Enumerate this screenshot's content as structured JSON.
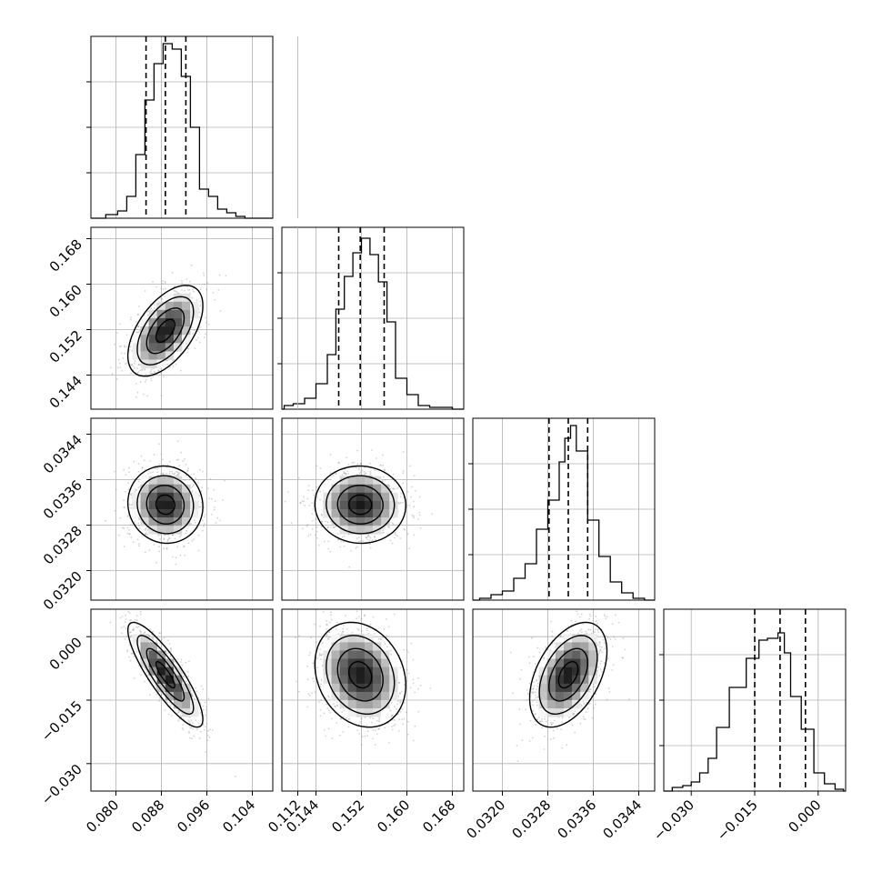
{
  "chart_data": {
    "type": "corner",
    "title": "",
    "colors": {
      "frame": "#000000",
      "grid": "#b0b0b0",
      "points": "#808080"
    },
    "parameters": [
      {
        "ticks": [
          0.08,
          0.088,
          0.096,
          0.104,
          0.112
        ],
        "tick_labels": [
          "0.080",
          "0.088",
          "0.096",
          "0.104",
          "0.112"
        ],
        "range": [
          0.0756,
          0.1076
        ],
        "quantiles": [
          0.0853,
          0.0887,
          0.0923
        ],
        "mean": 0.0887,
        "sd": 0.0033
      },
      {
        "ticks": [
          0.144,
          0.152,
          0.16,
          0.168
        ],
        "tick_labels": [
          "0.144",
          "0.152",
          "0.160",
          "0.168"
        ],
        "range": [
          0.138,
          0.17
        ],
        "quantiles": [
          0.148,
          0.1518,
          0.156
        ],
        "mean": 0.1518,
        "sd": 0.004
      },
      {
        "ticks": [
          0.032,
          0.0328,
          0.0336,
          0.0344
        ],
        "tick_labels": [
          "0.0320",
          "0.0328",
          "0.0336",
          "0.0344"
        ],
        "range": [
          0.03148,
          0.03468
        ],
        "quantiles": [
          0.03282,
          0.03316,
          0.0335
        ],
        "mean": 0.03316,
        "sd": 0.00034
      },
      {
        "ticks": [
          -0.03,
          -0.015,
          0.0
        ],
        "tick_labels": [
          "−0.030",
          "−0.015",
          "0.000"
        ],
        "range": [
          -0.0365,
          0.0065
        ],
        "quantiles": [
          -0.015,
          -0.009,
          -0.003
        ],
        "mean": -0.009,
        "sd": 0.0062
      }
    ],
    "correlations": [
      {
        "i": 1,
        "j": 0,
        "rho": 0.55
      },
      {
        "i": 2,
        "j": 0,
        "rho": -0.05
      },
      {
        "i": 2,
        "j": 1,
        "rho": -0.02
      },
      {
        "i": 3,
        "j": 0,
        "rho": -0.85
      },
      {
        "i": 3,
        "j": 1,
        "rho": -0.2
      },
      {
        "i": 3,
        "j": 2,
        "rho": 0.45
      }
    ],
    "histograms": [
      {
        "param": 0,
        "bin_edges": [
          0.0782,
          0.0803,
          0.0819,
          0.0835,
          0.0851,
          0.0867,
          0.0883,
          0.0899,
          0.0915,
          0.0931,
          0.0947,
          0.0963,
          0.0979,
          0.0995,
          0.1011,
          0.1027,
          0.105
        ],
        "counts": [
          0.02,
          0.04,
          0.12,
          0.35,
          0.65,
          0.85,
          0.96,
          0.93,
          0.78,
          0.5,
          0.16,
          0.12,
          0.05,
          0.03,
          0.01,
          0.0
        ]
      },
      {
        "param": 1,
        "bin_edges": [
          0.1384,
          0.14,
          0.142,
          0.144,
          0.146,
          0.1475,
          0.149,
          0.1505,
          0.152,
          0.1535,
          0.155,
          0.1565,
          0.158,
          0.16,
          0.162,
          0.164,
          0.168
        ],
        "counts": [
          0.02,
          0.03,
          0.06,
          0.14,
          0.3,
          0.55,
          0.73,
          0.86,
          0.94,
          0.85,
          0.7,
          0.48,
          0.17,
          0.08,
          0.02,
          0.01
        ]
      },
      {
        "param": 2,
        "bin_edges": [
          0.0316,
          0.0318,
          0.032,
          0.0322,
          0.0324,
          0.0326,
          0.0328,
          0.033,
          0.0331,
          0.0332,
          0.0333,
          0.0335,
          0.0337,
          0.0339,
          0.0341,
          0.0343,
          0.0345
        ],
        "counts": [
          0.01,
          0.03,
          0.05,
          0.12,
          0.2,
          0.39,
          0.55,
          0.76,
          0.89,
          0.96,
          0.82,
          0.44,
          0.24,
          0.1,
          0.04,
          0.01
        ]
      },
      {
        "param": 3,
        "bin_edges": [
          -0.0345,
          -0.032,
          -0.03,
          -0.028,
          -0.026,
          -0.024,
          -0.021,
          -0.017,
          -0.014,
          -0.012,
          -0.0095,
          -0.008,
          -0.0065,
          -0.004,
          -0.001,
          0.0015,
          0.004,
          0.006
        ],
        "counts": [
          0.02,
          0.03,
          0.05,
          0.1,
          0.18,
          0.35,
          0.57,
          0.73,
          0.83,
          0.84,
          0.87,
          0.76,
          0.52,
          0.34,
          0.1,
          0.04,
          0.01
        ]
      }
    ]
  }
}
